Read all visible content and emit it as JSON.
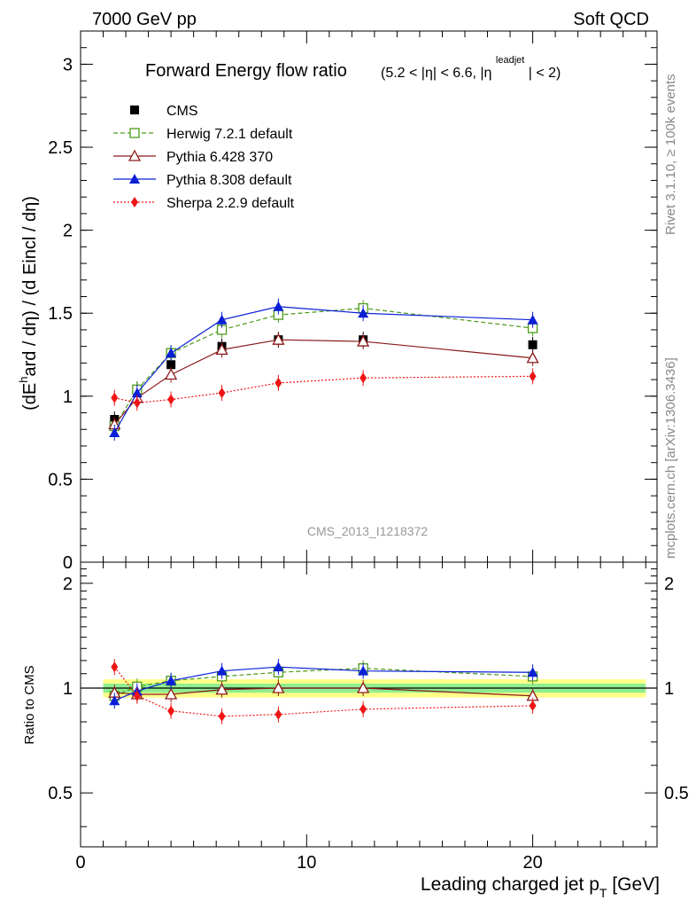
{
  "header": {
    "left": "7000 GeV pp",
    "right": "Soft QCD"
  },
  "side": {
    "rivet": "Rivet 3.1.10, ≥ 100k events",
    "mcplots": "mcplots.cern.ch [arXiv:1306.3436]"
  },
  "chart_data": [
    {
      "type": "line",
      "title": "Forward Energy flow ratio",
      "title_cut": "(5.2 < |η| < 6.6, |η",
      "title_cut_sup": "leadjet",
      "title_cut_end": "| < 2)",
      "ylabel": "(dE^hard / dη) / (d Eincl / dη)",
      "ylabel_main": "(dE",
      "ylabel_sup": "h",
      "ylabel_rest": "ard / dη) / (d Eincl / dη)",
      "watermark": "CMS_2013_I1218372",
      "xlim": [
        0,
        25.5
      ],
      "ylim": [
        0,
        3.2
      ],
      "yticks": [
        "0",
        "0.5",
        "1",
        "1.5",
        "2",
        "2.5",
        "3"
      ],
      "x": [
        1.5,
        2.5,
        4.0,
        6.25,
        8.75,
        12.5,
        20.0
      ],
      "legend_position": "top-left",
      "series": [
        {
          "name": "CMS",
          "color": "#000000",
          "marker": "square-filled",
          "line": "none",
          "values": [
            0.86,
            1.04,
            1.19,
            1.3,
            1.34,
            1.34,
            1.31
          ]
        },
        {
          "name": "Herwig 7.2.1 default",
          "color": "#4c9a19",
          "marker": "square-open",
          "line": "dashed",
          "values": [
            0.82,
            1.04,
            1.26,
            1.4,
            1.49,
            1.53,
            1.41
          ]
        },
        {
          "name": "Pythia 6.428 370",
          "color": "#8b1a1a",
          "marker": "triangle-open",
          "line": "solid",
          "values": [
            0.83,
            0.99,
            1.13,
            1.28,
            1.34,
            1.33,
            1.23
          ]
        },
        {
          "name": "Pythia 8.308 default",
          "color": "#0a1fd6",
          "marker": "triangle-filled",
          "line": "solid",
          "values": [
            0.78,
            1.02,
            1.26,
            1.46,
            1.54,
            1.5,
            1.46
          ]
        },
        {
          "name": "Sherpa 2.2.9 default",
          "color": "#f01414",
          "marker": "diamond-filled",
          "line": "dotted",
          "values": [
            0.99,
            0.96,
            0.98,
            1.02,
            1.08,
            1.11,
            1.12
          ]
        }
      ]
    },
    {
      "type": "line",
      "ylabel": "Ratio to CMS",
      "xlabel": "Leading charged jet p",
      "xlabel_sub": "T",
      "xlabel_unit": " [GeV]",
      "xlim": [
        0,
        25.5
      ],
      "xticks": [
        "0",
        "10",
        "20"
      ],
      "ylim": [
        0.35,
        2.3
      ],
      "yticks": [
        "0.5",
        "1",
        "2"
      ],
      "x": [
        1.5,
        2.5,
        4.0,
        6.25,
        8.75,
        12.5,
        20.0
      ],
      "band": {
        "x_range": [
          1.0,
          25.0
        ],
        "inner_half_width": 0.03,
        "outer_half_width": 0.06,
        "inner_color": "#90ee90",
        "outer_color": "#ffff88"
      },
      "series": [
        {
          "name": "Herwig 7.2.1 default",
          "color": "#4c9a19",
          "marker": "square-open",
          "line": "dashed",
          "values": [
            0.95,
            1.01,
            1.05,
            1.08,
            1.11,
            1.14,
            1.08
          ]
        },
        {
          "name": "Pythia 6.428 370",
          "color": "#8b1a1a",
          "marker": "triangle-open",
          "line": "solid",
          "values": [
            0.97,
            0.96,
            0.96,
            0.99,
            1.0,
            1.0,
            0.95
          ]
        },
        {
          "name": "Pythia 8.308 default",
          "color": "#0a1fd6",
          "marker": "triangle-filled",
          "line": "solid",
          "values": [
            0.92,
            0.98,
            1.05,
            1.12,
            1.15,
            1.12,
            1.11
          ]
        },
        {
          "name": "Sherpa 2.2.9 default",
          "color": "#f01414",
          "marker": "diamond-filled",
          "line": "dotted",
          "values": [
            1.15,
            0.95,
            0.86,
            0.83,
            0.84,
            0.87,
            0.89
          ]
        }
      ]
    }
  ]
}
